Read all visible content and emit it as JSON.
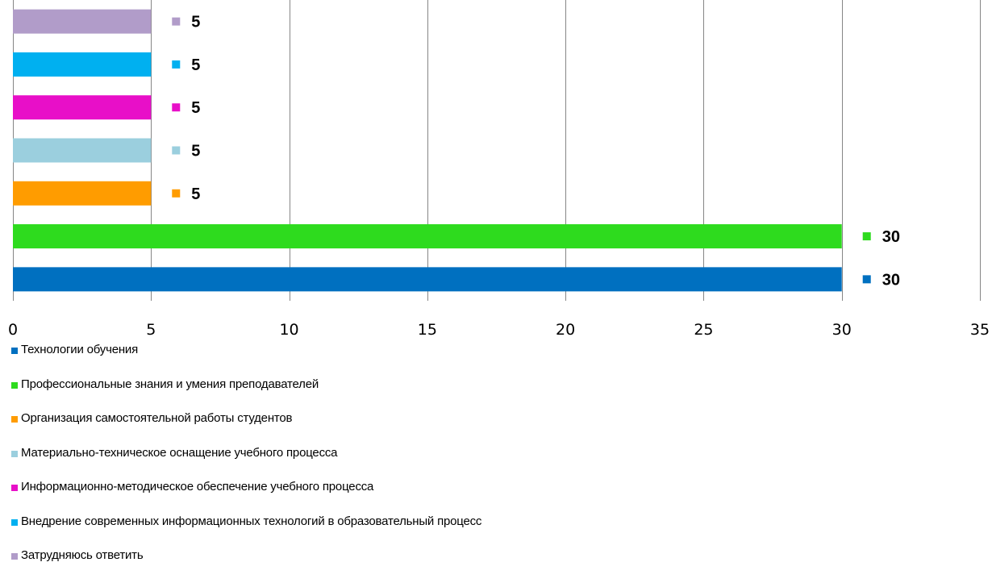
{
  "chart_data": {
    "type": "bar",
    "orientation": "horizontal",
    "title": "",
    "xlabel": "",
    "ylabel": "",
    "xlim": [
      0,
      35
    ],
    "x_ticks": [
      0,
      5,
      10,
      15,
      20,
      25,
      30,
      35
    ],
    "grid": "vertical",
    "legend_position": "bottom",
    "series": [
      {
        "name": "Технологии обучения",
        "value": 30,
        "color": "#0070C0"
      },
      {
        "name": "Профессиональные знания и умения преподавателей",
        "value": 30,
        "color": "#2EDB1E"
      },
      {
        "name": "Организация самостоятельной работы студентов",
        "value": 5,
        "color": "#FF9C00"
      },
      {
        "name": "Материально-техническое оснащение учебного процесса",
        "value": 5,
        "color": "#9BCFDE"
      },
      {
        "name": "Информационно-методическое обеспечение учебного процесса",
        "value": 5,
        "color": "#E80FC8"
      },
      {
        "name": "Внедрение современных информационных технологий в образовательный процесс",
        "value": 5,
        "color": "#00B0F0"
      },
      {
        "name": "Затрудняюсь ответить",
        "value": 5,
        "color": "#B19CC9"
      }
    ]
  }
}
